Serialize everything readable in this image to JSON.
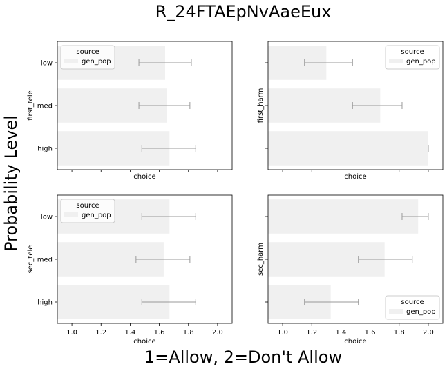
{
  "figure": {
    "title": "R_24FTAEpNvAaeEux",
    "ylabel": "Probability Level",
    "xlabel": "1=Allow, 2=Don't Allow"
  },
  "colors": {
    "bar": "#f0f0f0",
    "errorbar": "#999999",
    "axes": "#000000",
    "legend_border": "#cccccc"
  },
  "chart_data": [
    {
      "type": "bar",
      "orientation": "horizontal",
      "ylabel": "first_tele",
      "xlabel": "choice",
      "categories": [
        "low",
        "med",
        "high"
      ],
      "series": [
        {
          "name": "gen_pop",
          "values": [
            1.64,
            1.65,
            1.67
          ],
          "ci_low": [
            1.46,
            1.46,
            1.48
          ],
          "ci_high": [
            1.82,
            1.81,
            1.85
          ]
        }
      ],
      "xlim": [
        0.9,
        2.1
      ],
      "xticks": [],
      "show_xtick_labels": false,
      "show_ytick_labels": true,
      "legend": {
        "title": "source",
        "position": "top-left"
      }
    },
    {
      "type": "bar",
      "orientation": "horizontal",
      "ylabel": "first_harm",
      "xlabel": "choice",
      "categories": [
        "low",
        "med",
        "high"
      ],
      "series": [
        {
          "name": "gen_pop",
          "values": [
            1.3,
            1.67,
            2.0
          ],
          "ci_low": [
            1.15,
            1.48,
            2.0
          ],
          "ci_high": [
            1.48,
            1.82,
            2.0
          ]
        }
      ],
      "xlim": [
        0.9,
        2.1
      ],
      "xticks": [],
      "show_xtick_labels": false,
      "show_ytick_labels": false,
      "legend": {
        "title": "source",
        "position": "top-right"
      }
    },
    {
      "type": "bar",
      "orientation": "horizontal",
      "ylabel": "sec_tele",
      "xlabel": "choice",
      "categories": [
        "low",
        "med",
        "high"
      ],
      "series": [
        {
          "name": "gen_pop",
          "values": [
            1.67,
            1.63,
            1.67
          ],
          "ci_low": [
            1.48,
            1.44,
            1.48
          ],
          "ci_high": [
            1.85,
            1.81,
            1.85
          ]
        }
      ],
      "xlim": [
        0.9,
        2.1
      ],
      "xticks": [
        "1.0",
        "1.2",
        "1.4",
        "1.6",
        "1.8",
        "2.0"
      ],
      "show_xtick_labels": true,
      "show_ytick_labels": true,
      "legend": {
        "title": "source",
        "position": "top-left"
      }
    },
    {
      "type": "bar",
      "orientation": "horizontal",
      "ylabel": "sec_harm",
      "xlabel": "choice",
      "categories": [
        "low",
        "med",
        "high"
      ],
      "series": [
        {
          "name": "gen_pop",
          "values": [
            1.93,
            1.7,
            1.33
          ],
          "ci_low": [
            1.82,
            1.52,
            1.15
          ],
          "ci_high": [
            2.0,
            1.89,
            1.52
          ]
        }
      ],
      "xlim": [
        0.9,
        2.1
      ],
      "xticks": [
        "1.0",
        "1.2",
        "1.4",
        "1.6",
        "1.8",
        "2.0"
      ],
      "show_xtick_labels": true,
      "show_ytick_labels": false,
      "legend": {
        "title": "source",
        "position": "bottom-right"
      }
    }
  ]
}
